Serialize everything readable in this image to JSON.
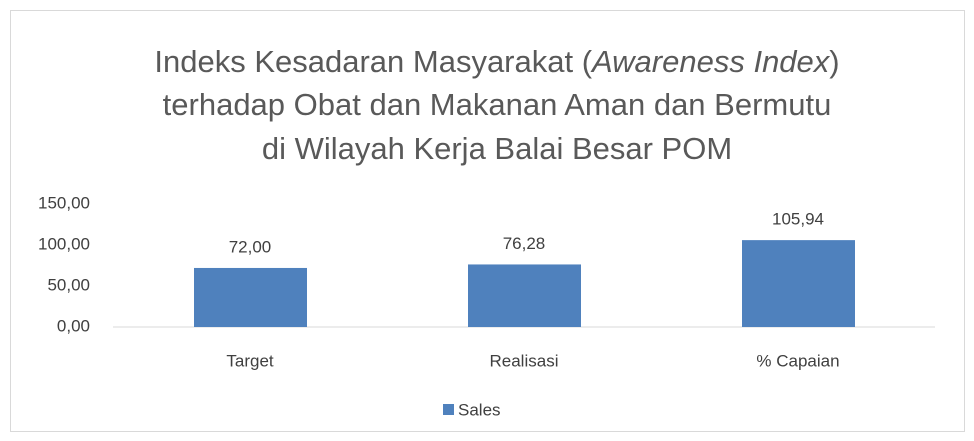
{
  "chart_data": {
    "type": "bar",
    "title": [
      [
        {
          "text": "Indeks Kesadaran Masyarakat (",
          "italic": false
        },
        {
          "text": "Awareness Index",
          "italic": true
        },
        {
          "text": ")",
          "italic": false
        }
      ],
      [
        {
          "text": "terhadap Obat dan Makanan Aman dan Bermutu",
          "italic": false
        }
      ],
      [
        {
          "text": "di Wilayah Kerja Balai Besar POM",
          "italic": false
        }
      ]
    ],
    "categories": [
      "Target",
      "Realisasi",
      "% Capaian"
    ],
    "series": [
      {
        "name": "Sales",
        "color": "#4f81bd",
        "values": [
          72,
          76.28,
          105.94
        ],
        "value_labels": [
          "72,00",
          "76,28",
          "105,94"
        ]
      }
    ],
    "ylim": [
      0,
      150
    ],
    "yticks": [
      {
        "value": 0,
        "label": "0,00"
      },
      {
        "value": 50,
        "label": "50,00"
      },
      {
        "value": 100,
        "label": "100,00"
      },
      {
        "value": 150,
        "label": "150,00"
      }
    ],
    "grid": false,
    "legend": "bottom"
  }
}
